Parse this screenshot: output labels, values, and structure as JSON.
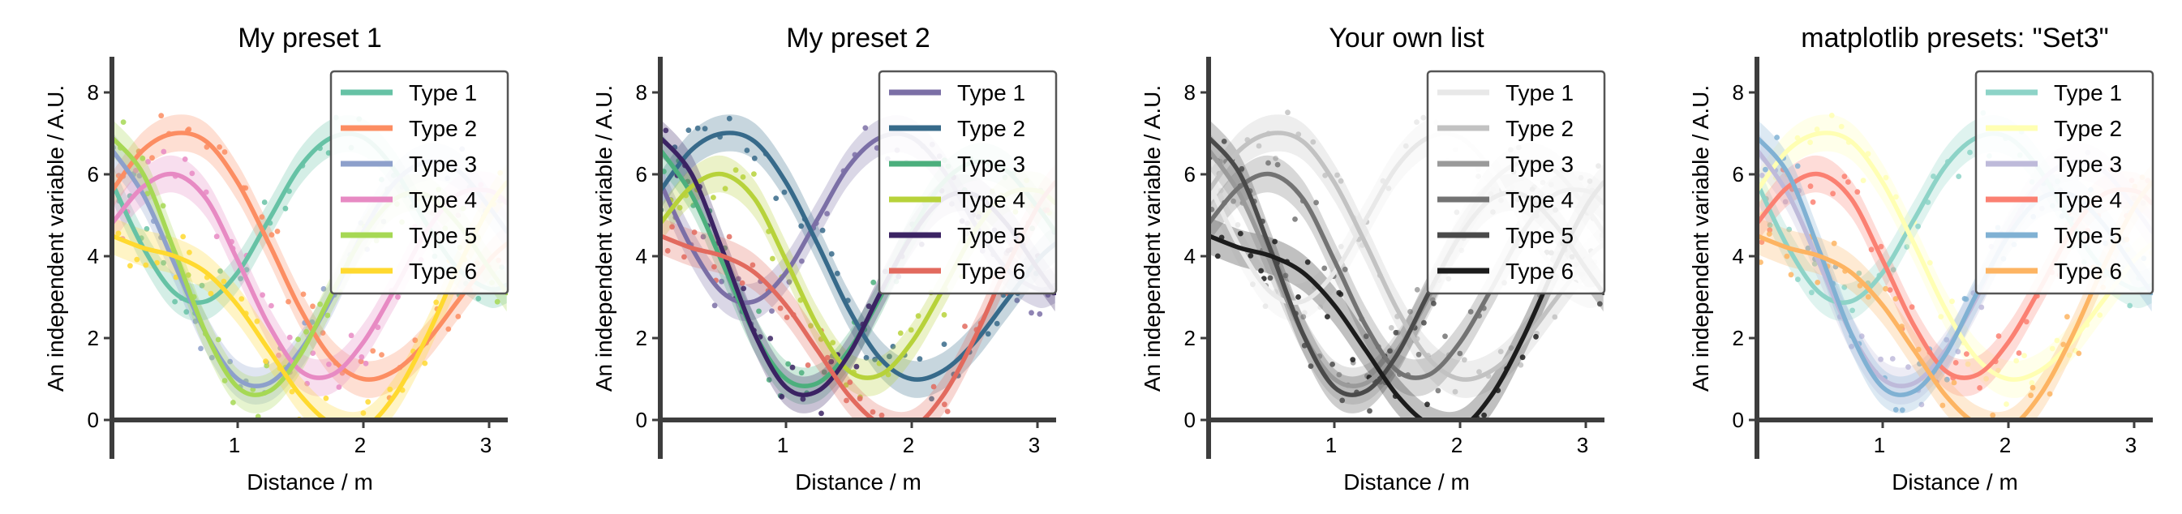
{
  "chart_data": [
    {
      "type": "line",
      "title": "My preset 1",
      "xlabel": "Distance / m",
      "ylabel": "An independent variable / A.U.",
      "xlim": [
        0,
        3.14
      ],
      "ylim": [
        0,
        8
      ],
      "xticks": [
        "1",
        "2",
        "3"
      ],
      "yticks": [
        "0",
        "2",
        "4",
        "6",
        "8"
      ],
      "legend_position": "top-right",
      "has_scatter_points": true,
      "has_confidence_bands": true,
      "series": [
        {
          "name": "Type 1",
          "color": "#66c2a5",
          "x": [
            0,
            0.25,
            0.5,
            0.75,
            1.0,
            1.25,
            1.5,
            1.75,
            2.0,
            2.25,
            2.5,
            2.75,
            3.0,
            3.14
          ],
          "values": [
            5.8,
            4.2,
            3.1,
            2.9,
            3.6,
            4.9,
            6.2,
            6.9,
            6.9,
            6.1,
            4.8,
            3.7,
            3.2,
            3.3
          ]
        },
        {
          "name": "Type 2",
          "color": "#fc8d62",
          "x": [
            0,
            0.25,
            0.5,
            0.75,
            1.0,
            1.25,
            1.5,
            1.75,
            2.0,
            2.25,
            2.5,
            2.75,
            3.0,
            3.14
          ],
          "values": [
            5.6,
            6.6,
            7.0,
            6.8,
            5.8,
            4.3,
            2.7,
            1.5,
            1.0,
            1.2,
            1.9,
            2.9,
            3.9,
            4.3
          ]
        },
        {
          "name": "Type 3",
          "color": "#8da0cb",
          "x": [
            0,
            0.25,
            0.5,
            0.75,
            1.0,
            1.25,
            1.5,
            1.75,
            2.0,
            2.25,
            2.5,
            2.75,
            3.0,
            3.14
          ],
          "values": [
            6.6,
            5.5,
            3.8,
            2.1,
            1.0,
            0.9,
            1.7,
            3.0,
            4.6,
            5.8,
            6.3,
            6.1,
            5.2,
            4.6
          ]
        },
        {
          "name": "Type 4",
          "color": "#e78ac3",
          "x": [
            0,
            0.25,
            0.5,
            0.75,
            1.0,
            1.25,
            1.5,
            1.75,
            2.0,
            2.25,
            2.5,
            2.75,
            3.0,
            3.14
          ],
          "values": [
            4.8,
            5.7,
            6.0,
            5.4,
            3.9,
            2.3,
            1.2,
            1.1,
            1.9,
            3.2,
            4.6,
            5.5,
            5.6,
            5.3
          ]
        },
        {
          "name": "Type 5",
          "color": "#a6d854",
          "x": [
            0,
            0.25,
            0.5,
            0.75,
            1.0,
            1.25,
            1.5,
            1.75,
            2.0,
            2.25,
            2.5,
            2.75,
            3.0,
            3.14
          ],
          "values": [
            6.9,
            6.0,
            4.1,
            2.1,
            0.8,
            0.7,
            1.6,
            3.1,
            4.5,
            5.4,
            5.5,
            4.8,
            3.7,
            3.1
          ]
        },
        {
          "name": "Type 6",
          "color": "#ffd92f",
          "x": [
            0,
            0.25,
            0.5,
            0.75,
            1.0,
            1.25,
            1.5,
            1.75,
            2.0,
            2.25,
            2.5,
            2.75,
            3.0,
            3.14
          ],
          "values": [
            4.5,
            4.2,
            4.0,
            3.6,
            2.8,
            1.7,
            0.6,
            -0.1,
            -0.2,
            0.6,
            2.0,
            3.7,
            5.2,
            5.8
          ]
        }
      ]
    },
    {
      "type": "line",
      "title": "My preset 2",
      "xlabel": "Distance / m",
      "ylabel": "An independent variable / A.U.",
      "xlim": [
        0,
        3.14
      ],
      "ylim": [
        0,
        8
      ],
      "xticks": [
        "1",
        "2",
        "3"
      ],
      "yticks": [
        "0",
        "2",
        "4",
        "6",
        "8"
      ],
      "legend_position": "top-right",
      "has_scatter_points": true,
      "has_confidence_bands": true,
      "series": [
        {
          "name": "Type 1",
          "color": "#7b6fa6",
          "x": [
            0,
            0.25,
            0.5,
            0.75,
            1.0,
            1.25,
            1.5,
            1.75,
            2.0,
            2.25,
            2.5,
            2.75,
            3.0,
            3.14
          ],
          "values": [
            5.8,
            4.2,
            3.1,
            2.9,
            3.6,
            4.9,
            6.2,
            6.9,
            6.9,
            6.1,
            4.8,
            3.7,
            3.2,
            3.3
          ]
        },
        {
          "name": "Type 2",
          "color": "#376a8a",
          "x": [
            0,
            0.25,
            0.5,
            0.75,
            1.0,
            1.25,
            1.5,
            1.75,
            2.0,
            2.25,
            2.5,
            2.75,
            3.0,
            3.14
          ],
          "values": [
            5.6,
            6.6,
            7.0,
            6.8,
            5.8,
            4.3,
            2.7,
            1.5,
            1.0,
            1.2,
            1.9,
            2.9,
            3.9,
            4.3
          ]
        },
        {
          "name": "Type 3",
          "color": "#4caf7d",
          "x": [
            0,
            0.25,
            0.5,
            0.75,
            1.0,
            1.25,
            1.5,
            1.75,
            2.0,
            2.25,
            2.5,
            2.75,
            3.0,
            3.14
          ],
          "values": [
            6.6,
            5.5,
            3.8,
            2.1,
            1.0,
            0.9,
            1.7,
            3.0,
            4.6,
            5.8,
            6.3,
            6.1,
            5.2,
            4.6
          ]
        },
        {
          "name": "Type 4",
          "color": "#b7d23a",
          "x": [
            0,
            0.25,
            0.5,
            0.75,
            1.0,
            1.25,
            1.5,
            1.75,
            2.0,
            2.25,
            2.5,
            2.75,
            3.0,
            3.14
          ],
          "values": [
            4.8,
            5.7,
            6.0,
            5.4,
            3.9,
            2.3,
            1.2,
            1.1,
            1.9,
            3.2,
            4.6,
            5.5,
            5.6,
            5.3
          ]
        },
        {
          "name": "Type 5",
          "color": "#3b2363",
          "x": [
            0,
            0.25,
            0.5,
            0.75,
            1.0,
            1.25,
            1.5,
            1.75,
            2.0,
            2.25,
            2.5,
            2.75,
            3.0,
            3.14
          ],
          "values": [
            6.9,
            6.0,
            4.1,
            2.1,
            0.8,
            0.7,
            1.6,
            3.1,
            4.5,
            5.4,
            5.5,
            4.8,
            3.7,
            3.1
          ]
        },
        {
          "name": "Type 6",
          "color": "#e26a5e",
          "x": [
            0,
            0.25,
            0.5,
            0.75,
            1.0,
            1.25,
            1.5,
            1.75,
            2.0,
            2.25,
            2.5,
            2.75,
            3.0,
            3.14
          ],
          "values": [
            4.5,
            4.2,
            4.0,
            3.6,
            2.8,
            1.7,
            0.6,
            -0.1,
            -0.2,
            0.6,
            2.0,
            3.7,
            5.2,
            5.8
          ]
        }
      ]
    },
    {
      "type": "line",
      "title": "Your own list",
      "xlabel": "Distance / m",
      "ylabel": "An independent variable / A.U.",
      "xlim": [
        0,
        3.14
      ],
      "ylim": [
        0,
        8
      ],
      "xticks": [
        "1",
        "2",
        "3"
      ],
      "yticks": [
        "0",
        "2",
        "4",
        "6",
        "8"
      ],
      "legend_position": "top-right",
      "has_scatter_points": true,
      "has_confidence_bands": true,
      "series": [
        {
          "name": "Type 1",
          "color": "#e8e8e8",
          "x": [
            0,
            0.25,
            0.5,
            0.75,
            1.0,
            1.25,
            1.5,
            1.75,
            2.0,
            2.25,
            2.5,
            2.75,
            3.0,
            3.14
          ],
          "values": [
            5.8,
            4.2,
            3.1,
            2.9,
            3.6,
            4.9,
            6.2,
            6.9,
            6.9,
            6.1,
            4.8,
            3.7,
            3.2,
            3.3
          ]
        },
        {
          "name": "Type 2",
          "color": "#c2c2c2",
          "x": [
            0,
            0.25,
            0.5,
            0.75,
            1.0,
            1.25,
            1.5,
            1.75,
            2.0,
            2.25,
            2.5,
            2.75,
            3.0,
            3.14
          ],
          "values": [
            5.6,
            6.6,
            7.0,
            6.8,
            5.8,
            4.3,
            2.7,
            1.5,
            1.0,
            1.2,
            1.9,
            2.9,
            3.9,
            4.3
          ]
        },
        {
          "name": "Type 3",
          "color": "#9a9a9a",
          "x": [
            0,
            0.25,
            0.5,
            0.75,
            1.0,
            1.25,
            1.5,
            1.75,
            2.0,
            2.25,
            2.5,
            2.75,
            3.0,
            3.14
          ],
          "values": [
            6.6,
            5.5,
            3.8,
            2.1,
            1.0,
            0.9,
            1.7,
            3.0,
            4.6,
            5.8,
            6.3,
            6.1,
            5.2,
            4.6
          ]
        },
        {
          "name": "Type 4",
          "color": "#737373",
          "x": [
            0,
            0.25,
            0.5,
            0.75,
            1.0,
            1.25,
            1.5,
            1.75,
            2.0,
            2.25,
            2.5,
            2.75,
            3.0,
            3.14
          ],
          "values": [
            4.8,
            5.7,
            6.0,
            5.4,
            3.9,
            2.3,
            1.2,
            1.1,
            1.9,
            3.2,
            4.6,
            5.5,
            5.6,
            5.3
          ]
        },
        {
          "name": "Type 5",
          "color": "#4a4a4a",
          "x": [
            0,
            0.25,
            0.5,
            0.75,
            1.0,
            1.25,
            1.5,
            1.75,
            2.0,
            2.25,
            2.5,
            2.75,
            3.0,
            3.14
          ],
          "values": [
            6.9,
            6.0,
            4.1,
            2.1,
            0.8,
            0.7,
            1.6,
            3.1,
            4.5,
            5.4,
            5.5,
            4.8,
            3.7,
            3.1
          ]
        },
        {
          "name": "Type 6",
          "color": "#1c1c1c",
          "x": [
            0,
            0.25,
            0.5,
            0.75,
            1.0,
            1.25,
            1.5,
            1.75,
            2.0,
            2.25,
            2.5,
            2.75,
            3.0,
            3.14
          ],
          "values": [
            4.5,
            4.2,
            4.0,
            3.6,
            2.8,
            1.7,
            0.6,
            -0.1,
            -0.2,
            0.6,
            2.0,
            3.7,
            5.2,
            5.8
          ]
        }
      ]
    },
    {
      "type": "line",
      "title": "matplotlib presets: \"Set3\"",
      "xlabel": "Distance / m",
      "ylabel": "An independent variable / A.U.",
      "xlim": [
        0,
        3.14
      ],
      "ylim": [
        0,
        8
      ],
      "xticks": [
        "1",
        "2",
        "3"
      ],
      "yticks": [
        "0",
        "2",
        "4",
        "6",
        "8"
      ],
      "legend_position": "top-right",
      "has_scatter_points": true,
      "has_confidence_bands": true,
      "series": [
        {
          "name": "Type 1",
          "color": "#8dd3c7",
          "x": [
            0,
            0.25,
            0.5,
            0.75,
            1.0,
            1.25,
            1.5,
            1.75,
            2.0,
            2.25,
            2.5,
            2.75,
            3.0,
            3.14
          ],
          "values": [
            5.8,
            4.2,
            3.1,
            2.9,
            3.6,
            4.9,
            6.2,
            6.9,
            6.9,
            6.1,
            4.8,
            3.7,
            3.2,
            3.3
          ]
        },
        {
          "name": "Type 2",
          "color": "#ffffb3",
          "x": [
            0,
            0.25,
            0.5,
            0.75,
            1.0,
            1.25,
            1.5,
            1.75,
            2.0,
            2.25,
            2.5,
            2.75,
            3.0,
            3.14
          ],
          "values": [
            5.6,
            6.6,
            7.0,
            6.8,
            5.8,
            4.3,
            2.7,
            1.5,
            1.0,
            1.2,
            1.9,
            2.9,
            3.9,
            4.3
          ]
        },
        {
          "name": "Type 3",
          "color": "#bebada",
          "x": [
            0,
            0.25,
            0.5,
            0.75,
            1.0,
            1.25,
            1.5,
            1.75,
            2.0,
            2.25,
            2.5,
            2.75,
            3.0,
            3.14
          ],
          "values": [
            6.6,
            5.5,
            3.8,
            2.1,
            1.0,
            0.9,
            1.7,
            3.0,
            4.6,
            5.8,
            6.3,
            6.1,
            5.2,
            4.6
          ]
        },
        {
          "name": "Type 4",
          "color": "#fb8072",
          "x": [
            0,
            0.25,
            0.5,
            0.75,
            1.0,
            1.25,
            1.5,
            1.75,
            2.0,
            2.25,
            2.5,
            2.75,
            3.0,
            3.14
          ],
          "values": [
            4.8,
            5.7,
            6.0,
            5.4,
            3.9,
            2.3,
            1.2,
            1.1,
            1.9,
            3.2,
            4.6,
            5.5,
            5.6,
            5.3
          ]
        },
        {
          "name": "Type 5",
          "color": "#80b1d3",
          "x": [
            0,
            0.25,
            0.5,
            0.75,
            1.0,
            1.25,
            1.5,
            1.75,
            2.0,
            2.25,
            2.5,
            2.75,
            3.0,
            3.14
          ],
          "values": [
            6.9,
            6.0,
            4.1,
            2.1,
            0.8,
            0.7,
            1.6,
            3.1,
            4.5,
            5.4,
            5.5,
            4.8,
            3.7,
            3.1
          ]
        },
        {
          "name": "Type 6",
          "color": "#fdb462",
          "x": [
            0,
            0.25,
            0.5,
            0.75,
            1.0,
            1.25,
            1.5,
            1.75,
            2.0,
            2.25,
            2.5,
            2.75,
            3.0,
            3.14
          ],
          "values": [
            4.5,
            4.2,
            4.0,
            3.6,
            2.8,
            1.7,
            0.6,
            -0.1,
            -0.2,
            0.6,
            2.0,
            3.7,
            5.2,
            5.8
          ]
        }
      ]
    }
  ]
}
